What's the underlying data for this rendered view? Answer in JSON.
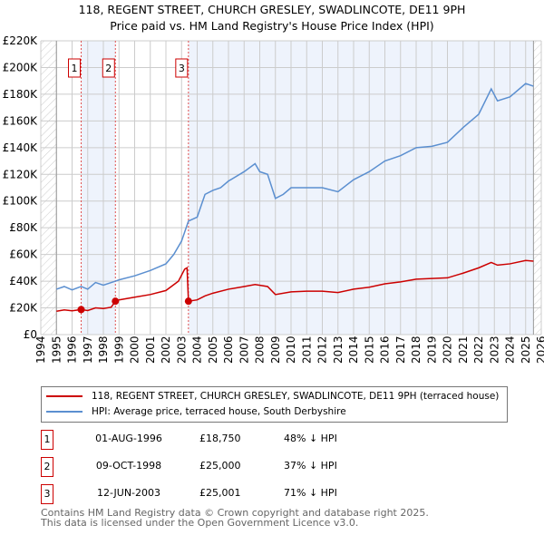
{
  "chart_data": {
    "type": "line",
    "title": "118, REGENT STREET, CHURCH GRESLEY, SWADLINCOTE, DE11 9PH",
    "subtitle": "Price paid vs. HM Land Registry's House Price Index (HPI)",
    "xlim": [
      1994,
      2026
    ],
    "ylim": [
      0,
      220000
    ],
    "y_ticks": [
      {
        "v": 0,
        "l": "£0"
      },
      {
        "v": 20000,
        "l": "£20K"
      },
      {
        "v": 40000,
        "l": "£40K"
      },
      {
        "v": 60000,
        "l": "£60K"
      },
      {
        "v": 80000,
        "l": "£80K"
      },
      {
        "v": 100000,
        "l": "£100K"
      },
      {
        "v": 120000,
        "l": "£120K"
      },
      {
        "v": 140000,
        "l": "£140K"
      },
      {
        "v": 160000,
        "l": "£160K"
      },
      {
        "v": 180000,
        "l": "£180K"
      },
      {
        "v": 200000,
        "l": "£200K"
      },
      {
        "v": 220000,
        "l": "£220K"
      }
    ],
    "x_ticks": [
      "1994",
      "1995",
      "1996",
      "1997",
      "1998",
      "1999",
      "2000",
      "2001",
      "2002",
      "2003",
      "2004",
      "2005",
      "2006",
      "2007",
      "2008",
      "2009",
      "2010",
      "2011",
      "2012",
      "2013",
      "2014",
      "2015",
      "2016",
      "2017",
      "2018",
      "2019",
      "2020",
      "2021",
      "2022",
      "2023",
      "2024",
      "2025",
      "2026"
    ],
    "grid": true,
    "series": [
      {
        "name": "118, REGENT STREET, CHURCH GRESLEY, SWADLINCOTE, DE11 9PH (terraced house)",
        "color": "#cc0000",
        "x": [
          1995,
          1995.5,
          1996,
          1996.58,
          1997,
          1997.5,
          1998,
          1998.5,
          1998.77,
          1999,
          2000,
          2001,
          2002,
          2002.8,
          2003.2,
          2003.35,
          2003.44,
          2004,
          2004.5,
          2005,
          2006,
          2007,
          2007.7,
          2008.5,
          2009,
          2010,
          2011,
          2012,
          2013,
          2014,
          2015,
          2016,
          2017,
          2018,
          2019,
          2020,
          2021,
          2022,
          2022.8,
          2023.2,
          2024,
          2025,
          2025.5
        ],
        "y": [
          17500,
          18500,
          17800,
          18750,
          18000,
          20000,
          19500,
          20500,
          25000,
          26000,
          28000,
          30000,
          33000,
          40000,
          49000,
          50000,
          25001,
          26000,
          29000,
          31000,
          34000,
          36000,
          37500,
          36000,
          30000,
          32000,
          32500,
          32500,
          31500,
          34000,
          35500,
          38000,
          39500,
          41500,
          42000,
          42500,
          46000,
          50000,
          54000,
          52000,
          53000,
          55500,
          55000
        ]
      },
      {
        "name": "HPI: Average price, terraced house, South Derbyshire",
        "color": "#5b8fd0",
        "x": [
          1995,
          1995.5,
          1996,
          1996.58,
          1997,
          1997.5,
          1998,
          1998.77,
          1999,
          2000,
          2001,
          2002,
          2002.5,
          2003,
          2003.44,
          2004,
          2004.5,
          2005,
          2005.5,
          2006,
          2007,
          2007.7,
          2008,
          2008.5,
          2009,
          2009.5,
          2010,
          2011,
          2012,
          2013,
          2014,
          2015,
          2016,
          2017,
          2018,
          2019,
          2020,
          2021,
          2022,
          2022.8,
          2023.2,
          2024,
          2025,
          2025.5
        ],
        "y": [
          34000,
          36000,
          33500,
          36000,
          34000,
          39000,
          37000,
          40000,
          41000,
          44000,
          48000,
          53000,
          60000,
          70000,
          85000,
          88000,
          105000,
          108000,
          110000,
          115000,
          122000,
          128000,
          122000,
          120000,
          102000,
          105000,
          110000,
          110000,
          110000,
          107000,
          116000,
          122000,
          130000,
          134000,
          140000,
          141000,
          144000,
          155000,
          165000,
          184000,
          175000,
          178000,
          188000,
          186000
        ]
      }
    ],
    "sales": [
      {
        "n": "1",
        "x": 1996.58,
        "y": 18750,
        "date": "01-AUG-1996",
        "price": "£18,750",
        "hpi": "48% ↓ HPI"
      },
      {
        "n": "2",
        "x": 1998.77,
        "y": 25000,
        "date": "09-OCT-1998",
        "price": "£25,000",
        "hpi": "37% ↓ HPI"
      },
      {
        "n": "3",
        "x": 2003.44,
        "y": 25001,
        "date": "12-JUN-2003",
        "price": "£25,001",
        "hpi": "71% ↓ HPI"
      }
    ]
  },
  "footer": {
    "line1": "Contains HM Land Registry data © Crown copyright and database right 2025.",
    "line2": "This data is licensed under the Open Government Licence v3.0."
  }
}
